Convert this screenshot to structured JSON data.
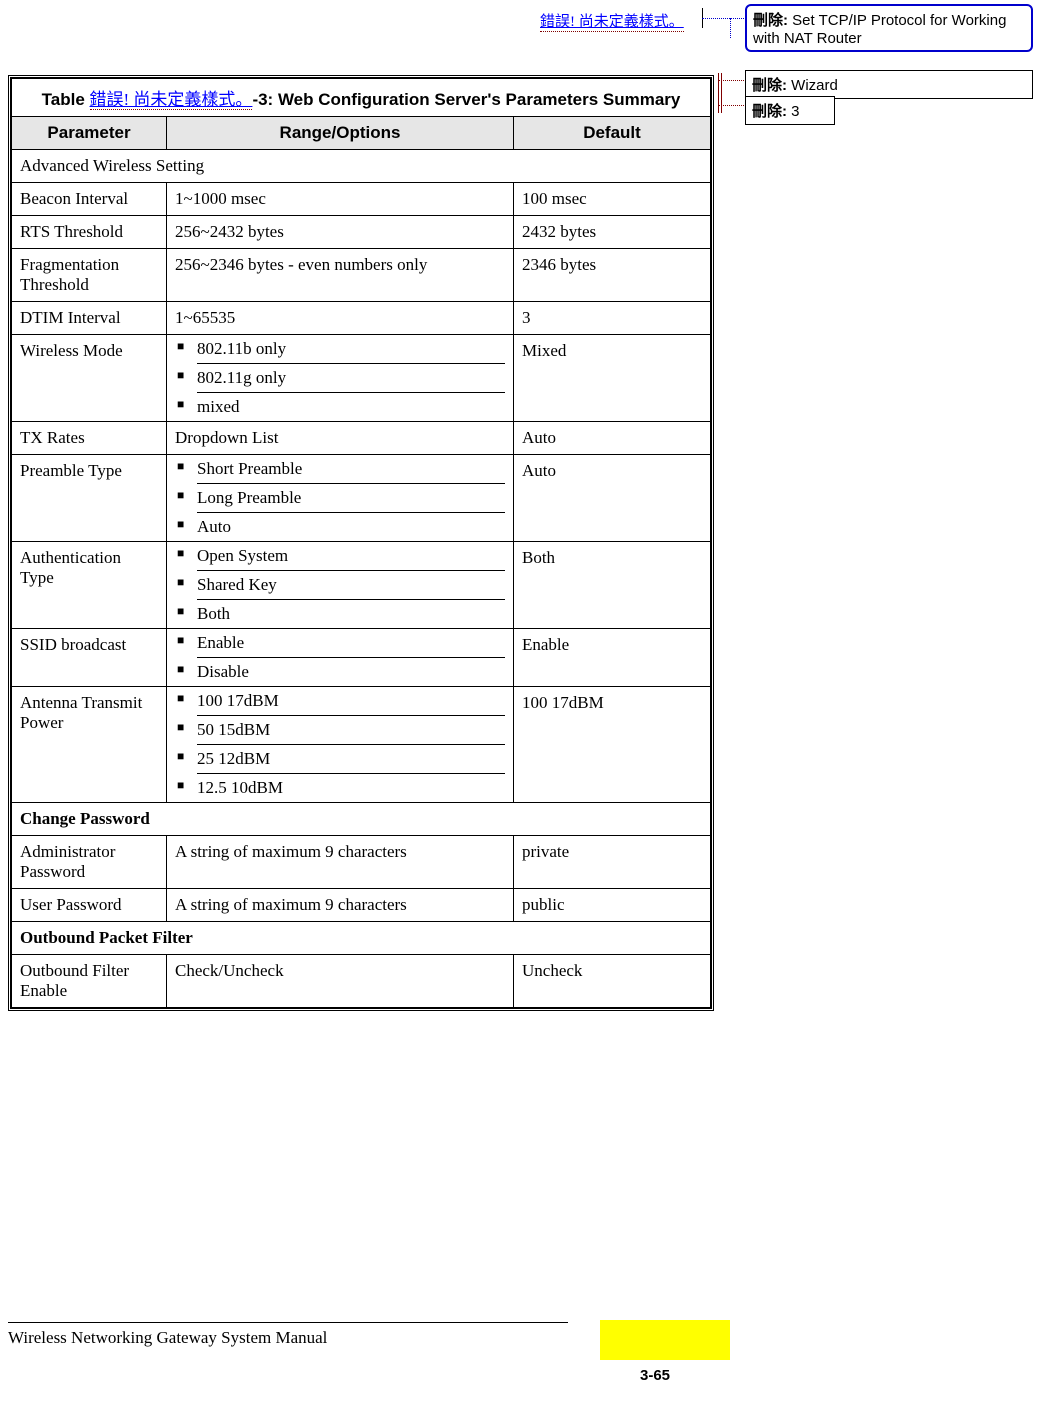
{
  "top_error": "錯誤! 尚未定義樣式。",
  "comments": {
    "c1": {
      "label": "刪除:",
      "text": " Set TCP/IP Protocol for Working with NAT Router"
    },
    "c2": {
      "label": "刪除:",
      "text": " Wizard"
    },
    "c3": {
      "label": "刪除:",
      "text": " 3"
    }
  },
  "table": {
    "title_prefix": "Table ",
    "title_error": "錯誤! 尚未定義樣式。",
    "title_suffix": "-3: Web Configuration Server's Parameters Summary",
    "headers": {
      "param": "Parameter",
      "range": "Range/Options",
      "default": "Default"
    },
    "sections": [
      {
        "heading": "Advanced Wireless Setting",
        "bold": false,
        "rows": [
          {
            "param": "Beacon Interval",
            "range_text": "1~1000 msec",
            "default": "100 msec"
          },
          {
            "param": "RTS Threshold",
            "range_text": "256~2432 bytes",
            "default": "2432 bytes"
          },
          {
            "param": "Fragmentation Threshold",
            "range_text": "256~2346 bytes - even numbers only",
            "default": "2346 bytes"
          },
          {
            "param": "DTIM Interval",
            "range_text": "1~65535",
            "default": "3"
          },
          {
            "param": "Wireless Mode",
            "range_opts": [
              "802.11b only",
              "802.11g only",
              "mixed"
            ],
            "default": "Mixed"
          },
          {
            "param": "TX Rates",
            "range_text": "Dropdown List",
            "default": "Auto"
          },
          {
            "param": "Preamble Type",
            "range_opts": [
              "Short Preamble",
              "Long Preamble",
              "Auto"
            ],
            "default": "Auto"
          },
          {
            "param": "Authentication Type",
            "range_opts": [
              "Open System",
              "Shared Key",
              "Both"
            ],
            "default": "Both"
          },
          {
            "param": "SSID broadcast",
            "range_opts": [
              "Enable",
              "Disable"
            ],
            "default": "Enable"
          },
          {
            "param": "Antenna Transmit Power",
            "range_opts": [
              "100 17dBM",
              "50 15dBM",
              "25 12dBM",
              "12.5 10dBM"
            ],
            "default": "100 17dBM"
          }
        ]
      },
      {
        "heading": "Change Password",
        "bold": true,
        "rows": [
          {
            "param": "Administrator Password",
            "range_text": "A string of maximum 9 characters",
            "default": "private"
          },
          {
            "param": "User Password",
            "range_text": "A string of maximum 9 characters",
            "default": "public"
          }
        ]
      },
      {
        "heading": "Outbound Packet Filter",
        "bold": true,
        "rows": [
          {
            "param": "Outbound Filter Enable",
            "range_text": "Check/Uncheck",
            "default": "Uncheck"
          }
        ]
      }
    ]
  },
  "footer": {
    "text": "Wireless Networking Gateway System Manual",
    "page": "3-65"
  },
  "colors": {
    "link": "#0000ff",
    "highlight": "#ffff00",
    "header_bg": "#e6e6e6",
    "comment_border_accent": "#0000cc"
  }
}
